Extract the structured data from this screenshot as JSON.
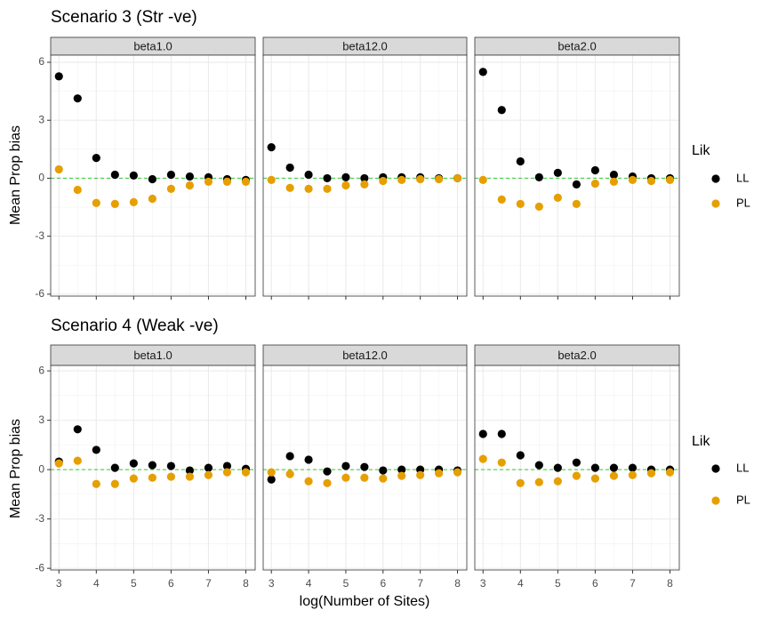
{
  "chart_data": [
    {
      "type": "scatter",
      "title": "Scenario 3 (Str -ve)",
      "ylabel": "Mean Prop bias",
      "legend_title": "Lik",
      "legend": "right",
      "x": [
        3,
        3.5,
        4,
        4.5,
        5,
        5.5,
        6,
        6.5,
        7,
        7.5,
        8
      ],
      "xlim": [
        2.78,
        8.25
      ],
      "xticks": [
        3,
        4,
        5,
        6,
        7,
        8
      ],
      "xtick_labels": false,
      "ylim": [
        -6.1,
        6.37
      ],
      "yticks": [
        -6,
        -3,
        0,
        3,
        6
      ],
      "grid": true,
      "reference_line": {
        "value": 0,
        "color": "#33cc33"
      },
      "facets": [
        {
          "label": "beta1.0",
          "series": [
            {
              "name": "LL",
              "color": "#000000",
              "values": [
                5.27,
                4.13,
                1.05,
                0.18,
                0.14,
                -0.05,
                0.18,
                0.09,
                0.05,
                -0.05,
                -0.09
              ]
            },
            {
              "name": "PL",
              "color": "#e69f00",
              "values": [
                0.46,
                -0.6,
                -1.28,
                -1.33,
                -1.24,
                -1.06,
                -0.55,
                -0.37,
                -0.18,
                -0.18,
                -0.18
              ]
            }
          ]
        },
        {
          "label": "beta12.0",
          "series": [
            {
              "name": "LL",
              "color": "#000000",
              "values": [
                1.6,
                0.55,
                0.18,
                0,
                0.05,
                0,
                0.05,
                0.05,
                0.05,
                0,
                0
              ]
            },
            {
              "name": "PL",
              "color": "#e69f00",
              "values": [
                -0.09,
                -0.5,
                -0.55,
                -0.55,
                -0.37,
                -0.32,
                -0.14,
                -0.09,
                -0.05,
                -0.05,
                0
              ]
            }
          ]
        },
        {
          "label": "beta2.0",
          "series": [
            {
              "name": "LL",
              "color": "#000000",
              "values": [
                5.5,
                3.53,
                0.87,
                0.05,
                0.28,
                -0.32,
                0.41,
                0.18,
                0.09,
                0,
                0
              ]
            },
            {
              "name": "PL",
              "color": "#e69f00",
              "values": [
                -0.09,
                -1.1,
                -1.33,
                -1.47,
                -1.01,
                -1.33,
                -0.28,
                -0.18,
                -0.09,
                -0.14,
                -0.09
              ]
            }
          ]
        }
      ]
    },
    {
      "type": "scatter",
      "title": "Scenario 4 (Weak -ve)",
      "ylabel": "Mean Prop bias",
      "xlabel": "log(Number of Sites)",
      "legend_title": "Lik",
      "legend": "right",
      "x": [
        3,
        3.5,
        4,
        4.5,
        5,
        5.5,
        6,
        6.5,
        7,
        7.5,
        8
      ],
      "xlim": [
        2.78,
        8.25
      ],
      "xticks": [
        3,
        4,
        5,
        6,
        7,
        8
      ],
      "xtick_labels": true,
      "ylim": [
        -6.1,
        6.33
      ],
      "yticks": [
        -6,
        -3,
        0,
        3,
        6
      ],
      "grid": true,
      "reference_line": {
        "value": 0,
        "color": "#33cc33"
      },
      "facets": [
        {
          "label": "beta1.0",
          "series": [
            {
              "name": "LL",
              "color": "#000000",
              "values": [
                0.49,
                2.45,
                1.2,
                0.11,
                0.38,
                0.27,
                0.22,
                -0.05,
                0.11,
                0.22,
                0.05
              ]
            },
            {
              "name": "PL",
              "color": "#e69f00",
              "values": [
                0.38,
                0.54,
                -0.87,
                -0.87,
                -0.54,
                -0.49,
                -0.43,
                -0.43,
                -0.33,
                -0.16,
                -0.16
              ]
            }
          ]
        },
        {
          "label": "beta12.0",
          "series": [
            {
              "name": "LL",
              "color": "#000000",
              "values": [
                -0.6,
                0.82,
                0.6,
                -0.11,
                0.22,
                0.16,
                -0.05,
                0,
                0,
                0,
                -0.05
              ]
            },
            {
              "name": "PL",
              "color": "#e69f00",
              "values": [
                -0.16,
                -0.27,
                -0.71,
                -0.82,
                -0.49,
                -0.49,
                -0.54,
                -0.38,
                -0.33,
                -0.22,
                -0.16
              ]
            }
          ]
        },
        {
          "label": "beta2.0",
          "series": [
            {
              "name": "LL",
              "color": "#000000",
              "values": [
                2.17,
                2.17,
                0.87,
                0.27,
                0.11,
                0.43,
                0.11,
                0.11,
                0.11,
                0,
                0
              ]
            },
            {
              "name": "PL",
              "color": "#e69f00",
              "values": [
                0.65,
                0.43,
                -0.82,
                -0.76,
                -0.71,
                -0.38,
                -0.54,
                -0.38,
                -0.33,
                -0.22,
                -0.16
              ]
            }
          ]
        }
      ]
    }
  ]
}
